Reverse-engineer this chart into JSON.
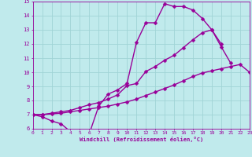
{
  "xlabel": "Windchill (Refroidissement éolien,°C)",
  "xlim": [
    0,
    23
  ],
  "ylim": [
    6,
    15
  ],
  "xticks": [
    0,
    1,
    2,
    3,
    4,
    5,
    6,
    7,
    8,
    9,
    10,
    11,
    12,
    13,
    14,
    15,
    16,
    17,
    18,
    19,
    20,
    21,
    22,
    23
  ],
  "yticks": [
    6,
    7,
    8,
    9,
    10,
    11,
    12,
    13,
    14,
    15
  ],
  "bg_color": "#c0eaec",
  "grid_color": "#a0d4d6",
  "line_color": "#990099",
  "line_width": 1.0,
  "marker": "D",
  "marker_size": 2.5,
  "line1_x": [
    0,
    1,
    2,
    3,
    4,
    5,
    6,
    7,
    8,
    9,
    10,
    11,
    12,
    13,
    14,
    15,
    16,
    17,
    18,
    19,
    20,
    21
  ],
  "line1_y": [
    7.0,
    6.85,
    6.55,
    6.35,
    5.8,
    5.65,
    5.65,
    7.6,
    8.45,
    8.75,
    9.2,
    12.1,
    13.5,
    13.5,
    14.85,
    14.65,
    14.65,
    14.4,
    13.8,
    13.0,
    11.8,
    10.65
  ],
  "line2_x": [
    0,
    1,
    2,
    3,
    4,
    5,
    6,
    7,
    8,
    9,
    10,
    11,
    12,
    13,
    14,
    15,
    16,
    17,
    18,
    19,
    20,
    21,
    22,
    23
  ],
  "line2_y": [
    7.0,
    7.0,
    7.05,
    7.1,
    7.2,
    7.3,
    7.4,
    7.5,
    7.6,
    7.75,
    7.9,
    8.1,
    8.35,
    8.6,
    8.85,
    9.1,
    9.4,
    9.7,
    9.95,
    10.1,
    10.25,
    10.4,
    10.55,
    10.0
  ],
  "line3_x": [
    0,
    1,
    2,
    3,
    4,
    5,
    6,
    7,
    8,
    9,
    10,
    11,
    12,
    13,
    14,
    15,
    16,
    17,
    18,
    19,
    20
  ],
  "line3_y": [
    7.0,
    7.0,
    7.1,
    7.2,
    7.3,
    7.5,
    7.7,
    7.85,
    8.1,
    8.4,
    9.05,
    9.2,
    10.05,
    10.4,
    10.85,
    11.2,
    11.75,
    12.3,
    12.8,
    13.0,
    12.0
  ]
}
